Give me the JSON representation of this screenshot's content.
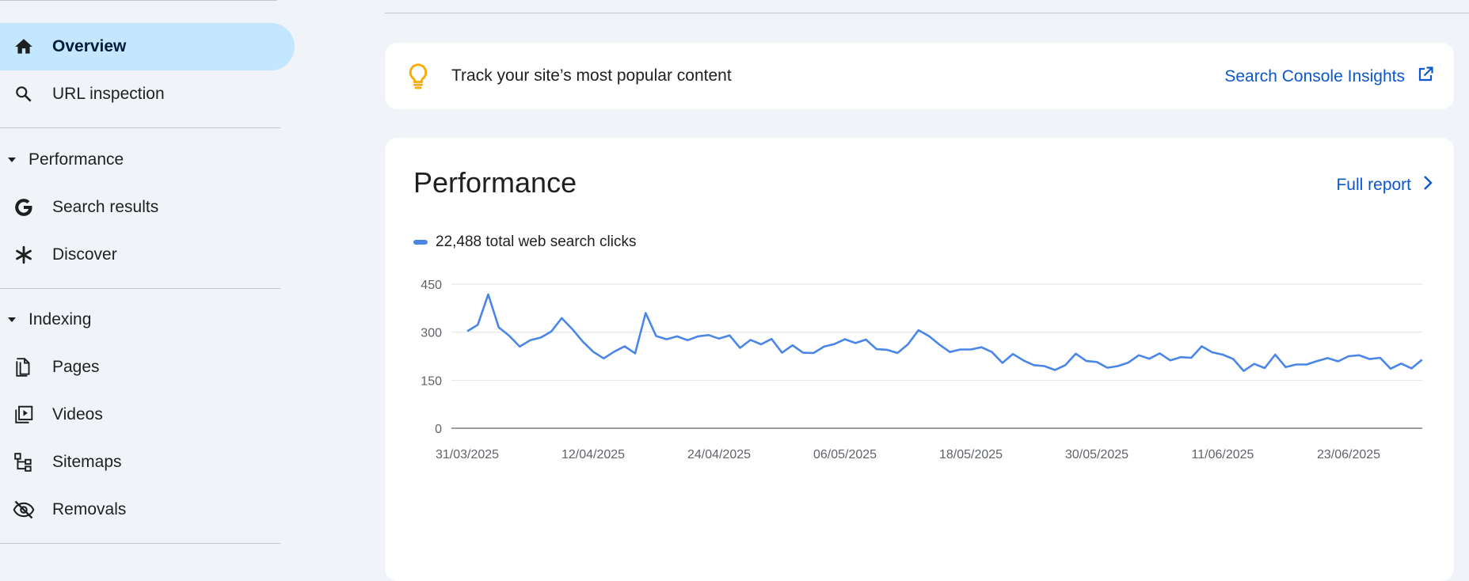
{
  "sidebar": {
    "items": [
      {
        "label": "Overview",
        "icon": "home-icon"
      },
      {
        "label": "URL inspection",
        "icon": "search-icon"
      }
    ],
    "sections": [
      {
        "label": "Performance",
        "items": [
          {
            "label": "Search results",
            "icon": "google-g-icon"
          },
          {
            "label": "Discover",
            "icon": "asterisk-icon"
          }
        ]
      },
      {
        "label": "Indexing",
        "items": [
          {
            "label": "Pages",
            "icon": "pages-icon"
          },
          {
            "label": "Videos",
            "icon": "video-icon"
          },
          {
            "label": "Sitemaps",
            "icon": "sitemap-icon"
          },
          {
            "label": "Removals",
            "icon": "eye-off-icon"
          }
        ]
      }
    ]
  },
  "insight": {
    "text": "Track your site’s most popular content",
    "link": "Search Console Insights",
    "icon": "lightbulb-icon",
    "icon_color": "#f9ab00"
  },
  "performance": {
    "title": "Performance",
    "full_report": "Full report",
    "legend": "22,488 total web search clicks"
  },
  "colors": {
    "accent": "#0b57d0",
    "active_bg": "#c2e7ff",
    "series": "#4a86e8"
  },
  "chart_data": {
    "type": "line",
    "xticks": [
      "31/03/2025",
      "12/04/2025",
      "24/04/2025",
      "06/05/2025",
      "18/05/2025",
      "30/05/2025",
      "11/06/2025",
      "23/06/2025"
    ],
    "yticks": [
      0,
      150,
      300,
      450
    ],
    "ylim": [
      0,
      450
    ],
    "x_start": "31/03/2025",
    "series": [
      {
        "values": [
          303,
          323,
          418,
          315,
          289,
          255,
          275,
          283,
          302,
          344,
          310,
          271,
          239,
          218,
          239,
          256,
          234,
          360,
          288,
          278,
          287,
          275,
          287,
          291,
          280,
          290,
          251,
          276,
          262,
          279,
          236,
          259,
          236,
          235,
          255,
          263,
          278,
          266,
          277,
          247,
          245,
          235,
          262,
          306,
          288,
          261,
          238,
          246,
          246,
          253,
          238,
          204,
          232,
          212,
          197,
          194,
          182,
          197,
          233,
          210,
          207,
          189,
          194,
          205,
          228,
          217,
          234,
          212,
          222,
          220,
          256,
          237,
          230,
          216,
          179,
          201,
          188,
          230,
          191,
          199,
          199,
          210,
          219,
          209,
          225,
          228,
          216,
          220,
          186,
          202,
          187,
          214
        ]
      }
    ]
  }
}
